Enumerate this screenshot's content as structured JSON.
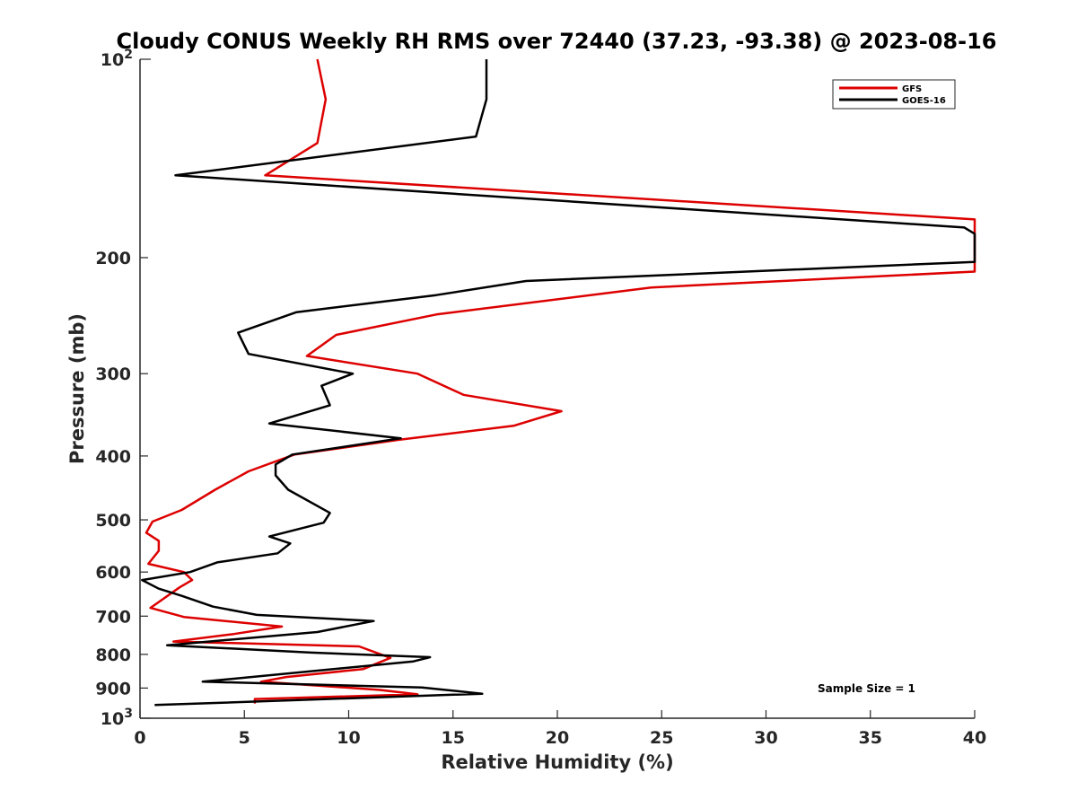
{
  "chart_data": {
    "type": "line",
    "title": "Cloudy CONUS Weekly RH RMS over 72440 (37.23, -93.38) @ 2023-08-16",
    "xlabel": "Relative Humidity (%)",
    "ylabel": "Pressure (mb)",
    "xlim": [
      0,
      40
    ],
    "ylim": [
      100,
      1000
    ],
    "y_scale": "log",
    "y_reversed": true,
    "grid": false,
    "legend_position": "top-right",
    "x_ticks": [
      0,
      5,
      10,
      15,
      20,
      25,
      30,
      35,
      40
    ],
    "x_tick_labels": [
      "0",
      "5",
      "10",
      "15",
      "20",
      "25",
      "30",
      "35",
      "40"
    ],
    "y_ticks": [
      200,
      300,
      400,
      500,
      600,
      700,
      800,
      900
    ],
    "y_tick_labels": [
      "200",
      "300",
      "400",
      "500",
      "600",
      "700",
      "800",
      "900"
    ],
    "y_edge_labels": [
      {
        "value": 100,
        "base": "10",
        "exp": "2"
      },
      {
        "value": 1000,
        "base": "10",
        "exp": "3"
      }
    ],
    "annotation": "Sample Size = 1",
    "series": [
      {
        "name": "GFS",
        "color": "#dd0000",
        "points": [
          [
            8.5,
            100
          ],
          [
            8.9,
            115
          ],
          [
            8.5,
            134
          ],
          [
            6.0,
            150
          ],
          [
            40.0,
            175
          ],
          [
            40.0,
            210
          ],
          [
            24.5,
            222
          ],
          [
            14.2,
            244
          ],
          [
            9.4,
            262
          ],
          [
            8.0,
            282
          ],
          [
            13.3,
            300
          ],
          [
            15.5,
            323
          ],
          [
            20.2,
            342
          ],
          [
            17.9,
            360
          ],
          [
            12.4,
            378
          ],
          [
            7.4,
            398
          ],
          [
            5.2,
            422
          ],
          [
            3.6,
            450
          ],
          [
            2.0,
            483
          ],
          [
            0.6,
            503
          ],
          [
            0.3,
            523
          ],
          [
            0.9,
            538
          ],
          [
            0.9,
            557
          ],
          [
            0.4,
            583
          ],
          [
            2.1,
            600
          ],
          [
            2.5,
            617
          ],
          [
            1.9,
            633
          ],
          [
            0.5,
            680
          ],
          [
            2.1,
            702
          ],
          [
            6.8,
            726
          ],
          [
            4.5,
            745
          ],
          [
            1.6,
            765
          ],
          [
            10.5,
            778
          ],
          [
            12.0,
            810
          ],
          [
            10.7,
            842
          ],
          [
            7.0,
            866
          ],
          [
            5.8,
            880
          ],
          [
            11.5,
            906
          ],
          [
            13.3,
            920
          ],
          [
            5.5,
            935
          ],
          [
            5.5,
            950
          ]
        ]
      },
      {
        "name": "GOES-16",
        "color": "#000000",
        "points": [
          [
            16.6,
            100
          ],
          [
            16.6,
            115
          ],
          [
            16.1,
            131
          ],
          [
            1.7,
            150
          ],
          [
            39.5,
            180
          ],
          [
            40.0,
            184
          ],
          [
            40.0,
            203
          ],
          [
            18.5,
            217
          ],
          [
            14.2,
            228
          ],
          [
            7.5,
            242
          ],
          [
            4.7,
            260
          ],
          [
            5.2,
            280
          ],
          [
            10.2,
            300
          ],
          [
            8.7,
            313
          ],
          [
            9.1,
            335
          ],
          [
            6.2,
            357
          ],
          [
            12.5,
            376
          ],
          [
            7.3,
            398
          ],
          [
            6.5,
            412
          ],
          [
            6.5,
            428
          ],
          [
            7.1,
            450
          ],
          [
            9.1,
            488
          ],
          [
            8.8,
            505
          ],
          [
            6.2,
            530
          ],
          [
            7.2,
            543
          ],
          [
            6.6,
            562
          ],
          [
            3.7,
            580
          ],
          [
            2.4,
            600
          ],
          [
            0.1,
            617
          ],
          [
            0.9,
            636
          ],
          [
            2.0,
            652
          ],
          [
            3.5,
            677
          ],
          [
            5.6,
            697
          ],
          [
            11.2,
            712
          ],
          [
            8.5,
            740
          ],
          [
            1.3,
            775
          ],
          [
            8.2,
            795
          ],
          [
            13.9,
            808
          ],
          [
            13.1,
            820
          ],
          [
            3.0,
            880
          ],
          [
            13.5,
            898
          ],
          [
            16.4,
            918
          ],
          [
            0.7,
            955
          ]
        ]
      }
    ]
  }
}
